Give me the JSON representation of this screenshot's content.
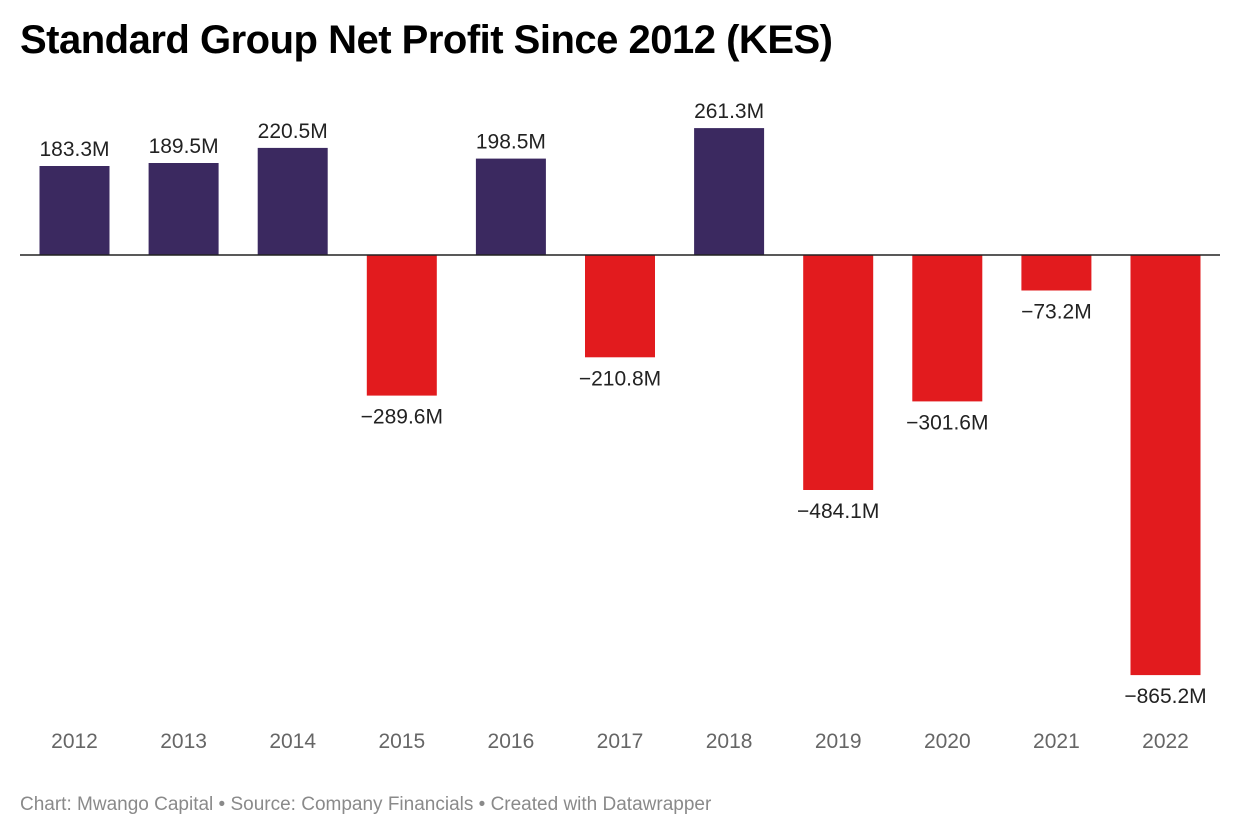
{
  "chart_data": {
    "type": "bar",
    "title": "Standard Group Net Profit Since 2012 (KES)",
    "categories": [
      "2012",
      "2013",
      "2014",
      "2015",
      "2016",
      "2017",
      "2018",
      "2019",
      "2020",
      "2021",
      "2022"
    ],
    "values": [
      183.3,
      189.5,
      220.5,
      -289.6,
      198.5,
      -210.8,
      261.3,
      -484.1,
      -301.6,
      -73.2,
      -865.2
    ],
    "value_labels": [
      "183.3M",
      "189.5M",
      "220.5M",
      "−289.6M",
      "198.5M",
      "−210.8M",
      "261.3M",
      "−484.1M",
      "−301.6M",
      "−73.2M",
      "−865.2M"
    ],
    "unit": "M",
    "xlabel": "",
    "ylabel": "",
    "grid": false,
    "legend": "none",
    "colors": {
      "positive": "#3b2960",
      "negative": "#e21b1e",
      "zero_line": "#222222"
    },
    "footer": "Chart: Mwango Capital • Source: Company Financials • Created with Datawrapper"
  }
}
